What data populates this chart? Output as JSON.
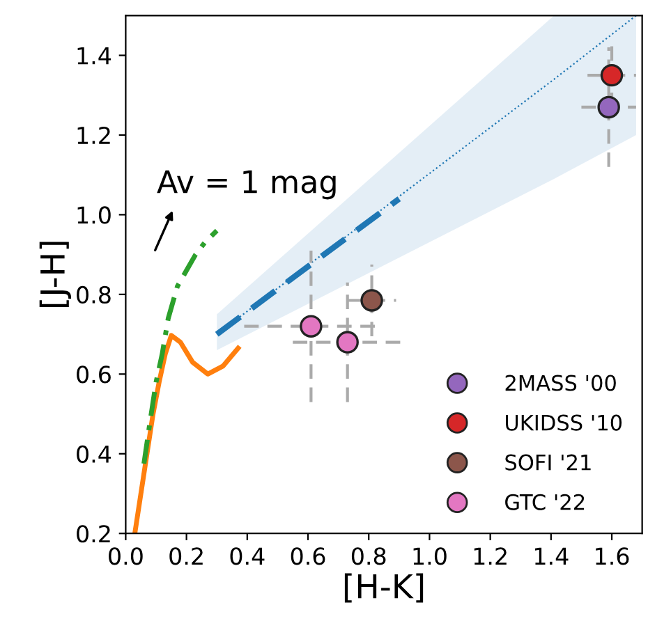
{
  "chart_data": {
    "type": "scatter",
    "xlabel": "[H-K]",
    "ylabel": "[J-H]",
    "xlim": [
      0,
      1.7
    ],
    "ylim": [
      0.2,
      1.5
    ],
    "xticks": [
      {
        "value": 0,
        "label": "0.0"
      },
      0.2,
      0.4,
      0.6,
      0.8,
      {
        "value": 1,
        "label": "1.0"
      },
      1.2,
      1.4,
      1.6
    ],
    "yticks": [
      0.2,
      0.4,
      0.6,
      0.8,
      {
        "value": 1,
        "label": "1.0"
      },
      1.2,
      1.4
    ],
    "grid": false,
    "legend": "bottom right",
    "marker": "circle",
    "series": [
      {
        "type": "line",
        "marker": "none",
        "color": "#ff7f0e",
        "line_style": "solid",
        "x": [
          0.03,
          0.05,
          0.07,
          0.09,
          0.11,
          0.13,
          0.15,
          0.18,
          0.22,
          0.27,
          0.32,
          0.37
        ],
        "values": [
          0.2,
          0.3,
          0.4,
          0.5,
          0.58,
          0.65,
          0.697,
          0.68,
          0.63,
          0.6,
          0.62,
          0.665
        ]
      },
      {
        "type": "line",
        "marker": "none",
        "color": "#2ca02c",
        "line_style": "dashdot",
        "x": [
          0.06,
          0.08,
          0.1,
          0.12,
          0.14,
          0.17,
          0.2,
          0.23,
          0.26,
          0.3
        ],
        "values": [
          0.375,
          0.48,
          0.58,
          0.65,
          0.74,
          0.82,
          0.86,
          0.9,
          0.93,
          0.96
        ]
      },
      {
        "type": "line",
        "marker": "none",
        "color": "#1f77b4",
        "line_style": "dotted",
        "x": [
          0.3,
          1.41,
          1.68
        ],
        "values": [
          0.7,
          1.34,
          1.5
        ],
        "lower": [
          0.66,
          1.09,
          1.2
        ],
        "upper": [
          0.75,
          1.5,
          1.5
        ]
      },
      {
        "type": "line",
        "marker": "none",
        "color": "#1f77b4",
        "line_style": "dashed",
        "x": [
          0.3,
          0.9
        ],
        "values": [
          0.7,
          1.04
        ]
      },
      {
        "name": "2MASS '00",
        "color": "#9467bd",
        "x": [
          1.59
        ],
        "values": [
          1.27
        ],
        "xerrors": [
          0.09
        ],
        "errors": [
          0.15
        ]
      },
      {
        "name": "UKIDSS '10",
        "color": "#d62728",
        "x": [
          1.6
        ],
        "values": [
          1.35
        ],
        "xerrors": [
          0.08
        ],
        "errors": [
          0.08
        ]
      },
      {
        "name": "SOFI '21",
        "color": "#8c564b",
        "x": [
          0.81
        ],
        "values": [
          0.785
        ],
        "xerrors": [
          0.08
        ],
        "errors": [
          0.09
        ]
      },
      {
        "name": "GTC '22",
        "color": "#e377c2",
        "x": [
          0.61,
          0.73
        ],
        "values": [
          0.72,
          0.68
        ],
        "xerrors": [
          0.22,
          0.18
        ],
        "errors": [
          0.19,
          0.15
        ]
      }
    ],
    "annotations": [
      "Av = 1 mag"
    ]
  }
}
